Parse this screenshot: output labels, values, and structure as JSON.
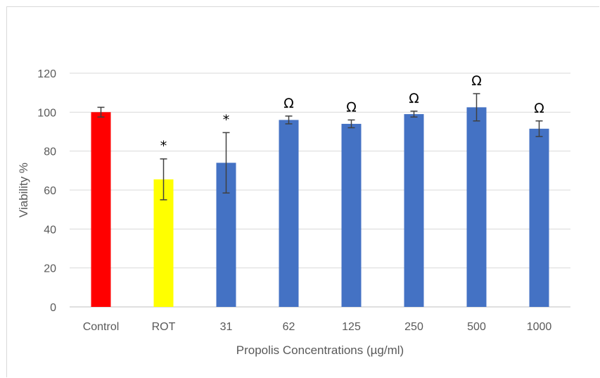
{
  "chart_data": {
    "type": "bar",
    "categories": [
      "Control",
      "ROT",
      "31",
      "62",
      "125",
      "250",
      "500",
      "1000"
    ],
    "values": [
      100,
      65.5,
      74,
      96,
      94,
      99,
      102.5,
      91.5
    ],
    "errors": [
      2.5,
      10.5,
      15.5,
      2,
      2,
      1.5,
      7,
      4
    ],
    "annotations": [
      "",
      "*",
      "*",
      "Ω",
      "Ω",
      "Ω",
      "Ω",
      "Ω"
    ],
    "bar_colors": [
      "#ff0000",
      "#ffff00",
      "#4472c4",
      "#4472c4",
      "#4472c4",
      "#4472c4",
      "#4472c4",
      "#4472c4"
    ],
    "xlabel": "Propolis Concentrations (µg/ml)",
    "ylabel": "Viability %",
    "ylim": [
      0,
      120
    ],
    "yticks": [
      0,
      20,
      40,
      60,
      80,
      100,
      120
    ],
    "grid": true
  }
}
